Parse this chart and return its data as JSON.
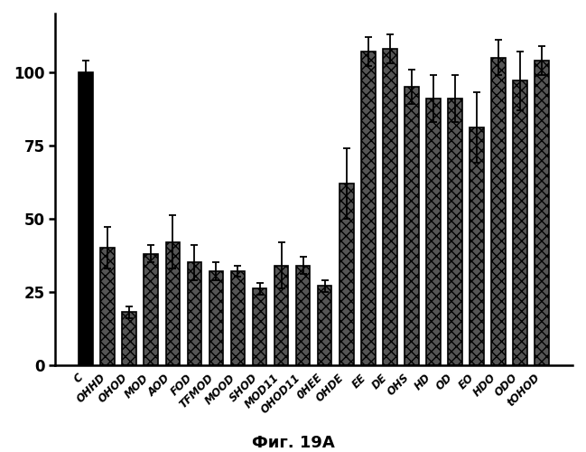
{
  "categories": [
    "C",
    "OHHD",
    "OHOD",
    "MOD",
    "AOD",
    "FOD",
    "TFMOD",
    "MOOD",
    "SHOD",
    "MOD11",
    "OHOD11",
    "0HEE",
    "OHDE",
    "EE",
    "DE",
    "OHS",
    "HD",
    "OD",
    "EO",
    "HDO",
    "ODO",
    "tOHOD"
  ],
  "values": [
    100,
    40,
    18,
    38,
    42,
    35,
    32,
    32,
    26,
    34,
    34,
    27,
    62,
    107,
    108,
    95,
    91,
    91,
    81,
    105,
    97,
    104
  ],
  "errors": [
    4,
    7,
    2,
    3,
    9,
    6,
    3,
    2,
    2,
    8,
    3,
    2,
    12,
    5,
    5,
    6,
    8,
    8,
    12,
    6,
    10,
    5
  ],
  "bar_color_first": "#000000",
  "bar_color_rest": "#3a3a3a",
  "bar_hatch_rest": "//",
  "edge_color": "#000000",
  "figsize": [
    6.49,
    5.0
  ],
  "dpi": 100,
  "ylim": [
    0,
    120
  ],
  "yticks": [
    0,
    25,
    50,
    75,
    100
  ],
  "caption": "Фиг. 19A"
}
